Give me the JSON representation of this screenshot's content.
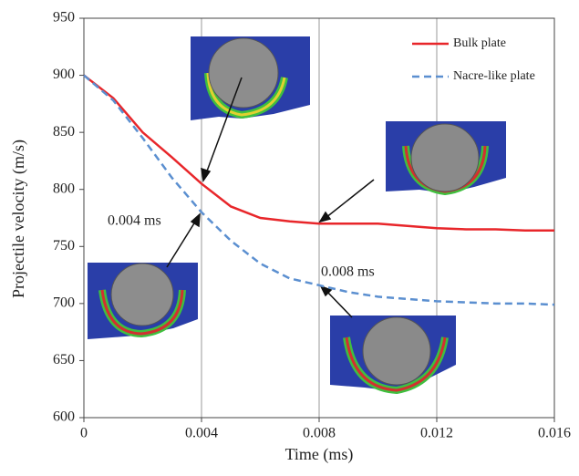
{
  "chart_data": {
    "type": "line",
    "x_label": "Time (ms)",
    "y_label": "Projectile velocity (m/s)",
    "x": [
      0,
      0.001,
      0.002,
      0.003,
      0.004,
      0.005,
      0.006,
      0.007,
      0.008,
      0.009,
      0.01,
      0.011,
      0.012,
      0.013,
      0.014,
      0.015,
      0.016
    ],
    "series": [
      {
        "name": "Bulk plate",
        "color": "#e8262a",
        "dash": false,
        "values": [
          900,
          880,
          850,
          828,
          805,
          785,
          775,
          772,
          770,
          770,
          770,
          768,
          766,
          765,
          765,
          764,
          764
        ]
      },
      {
        "name": "Nacre-like plate",
        "color": "#5b8fd0",
        "dash": true,
        "values": [
          900,
          878,
          845,
          810,
          780,
          755,
          735,
          722,
          716,
          710,
          706,
          704,
          702,
          701,
          700,
          700,
          699
        ]
      }
    ],
    "xlim": [
      0,
      0.016
    ],
    "xticks": [
      0,
      0.004,
      0.008,
      0.012,
      0.016
    ],
    "ylim": [
      600,
      950
    ],
    "yticks": [
      600,
      650,
      700,
      750,
      800,
      850,
      900,
      950
    ],
    "xgrid": true,
    "legend": "upper right",
    "annotations": [
      "0.004 ms",
      "0.008 ms"
    ]
  }
}
